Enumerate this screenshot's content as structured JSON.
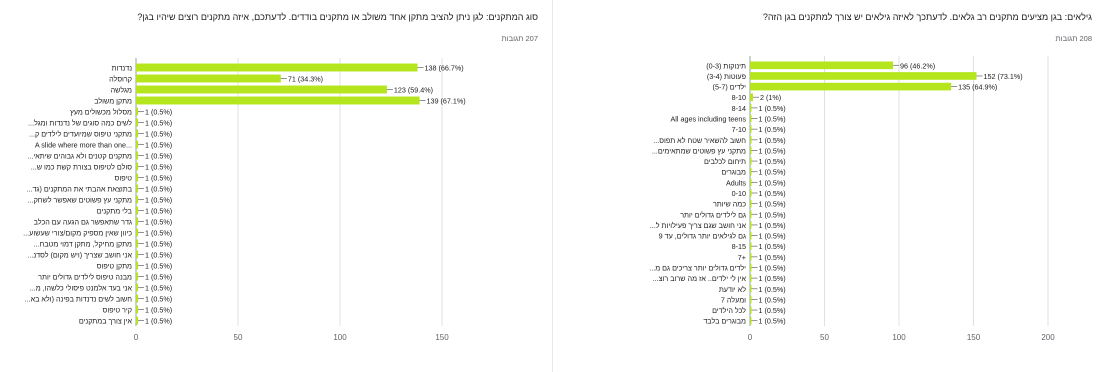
{
  "charts": [
    {
      "question": "סוג המתקנים: לגן ניתן להציב מתקן אחד משולב או מתקנים בודדים. לדעתכם, איזה מתקנים רוצים שיהיו בגן?",
      "responses": "207 תגובות"
    },
    {
      "question": "גילאים: בגן מציעים מתקנים רב גלאים. לדעתכך לאיזה גילאים יש צורך למתקנים בגן הזה?",
      "responses": "208 תגובות"
    }
  ],
  "colors": {
    "bar": "#b5e61d",
    "axis": "#9aa0a6",
    "grid": "#e0e0e0",
    "text": "#202124"
  },
  "chart_data": [
    {
      "type": "bar",
      "orientation": "horizontal",
      "title": "סוג המתקנים: לגן ניתן להציב מתקן אחד משולב או מתקנים בודדים. לדעתכם, איזה מתקנים רוצים שיהיו בגן?",
      "xlim": [
        0,
        150
      ],
      "xticks": [
        0,
        50,
        100,
        150
      ],
      "grid": true,
      "categories": [
        "נדנדות",
        "קרוסלה",
        "מגלשה",
        "מתקן משולב",
        "מסלול מכשולים מעץ",
        "...לשים כמה סוגים של נדנדות ומגל",
        "...מתקני טיפוס שמיועדים לילדים ק",
        "A slide where more than one...",
        "...מתקנים קטנים ולא גבוהים שיתאי",
        "...סולם לטיפוס בצורת קשת כמו ש",
        "טיפוס",
        "...בתוצאת אהבתי את המתקנים (גד",
        "...מתקני עץ פשוטים שאפשר לשחק",
        "בלי מתקנים",
        "גדר שתאפשר גם הגעה עם הכלב",
        "...כיוון שאין מספיק מקום/צורי שעשוע",
        "...מתקן מחיקל, מתקן דמוי מטבח",
        "...אני חושב שצריך (ויש מקום) לסדנ",
        "מתקן טיפוס",
        "מבנה טיפוס לילדים גדולים יותר",
        "...אני בעד אלמנט פיסולי כלשהו, מ",
        "...חשוב לשים נדנדות בפינה (ולא בא",
        "קיר טיפוס",
        "אין צורך במתקנים"
      ],
      "values": [
        138,
        71,
        123,
        139,
        1,
        1,
        1,
        1,
        1,
        1,
        1,
        1,
        1,
        1,
        1,
        1,
        1,
        1,
        1,
        1,
        1,
        1,
        1,
        1
      ],
      "labels": [
        "138 (66.7%)",
        "71 (34.3%)",
        "123 (59.4%)",
        "139 (67.1%)",
        "1 (0.5%)",
        "1 (0.5%)",
        "1 (0.5%)",
        "1 (0.5%)",
        "1 (0.5%)",
        "1 (0.5%)",
        "1 (0.5%)",
        "1 (0.5%)",
        "1 (0.5%)",
        "1 (0.5%)",
        "1 (0.5%)",
        "1 (0.5%)",
        "1 (0.5%)",
        "1 (0.5%)",
        "1 (0.5%)",
        "1 (0.5%)",
        "1 (0.5%)",
        "1 (0.5%)",
        "1 (0.5%)",
        "1 (0.5%)"
      ]
    },
    {
      "type": "bar",
      "orientation": "horizontal",
      "title": "גילאים: בגן מציעים מתקנים רב גלאים. לדעתכך לאיזה גילאים יש צורך למתקנים בגן הזה?",
      "xlim": [
        0,
        200
      ],
      "xticks": [
        0,
        50,
        100,
        150,
        200
      ],
      "grid": true,
      "categories": [
        "תינוקות (0-3)",
        "פעוטות (3-4)",
        "ילדים (5-7)",
        "8-10",
        "8-14",
        "All ages including teens",
        "7-10",
        "...חשוב להשאיר שטח לא תפוס",
        "...מתקני עץ פשוטים שמתאימים",
        "תיחום לכלבים",
        "מבוגרים",
        "Adults",
        "0-10",
        "כמה שיותר",
        "גם לילדים גדולים יותר",
        "...אני חושב שגם צריך פעילויות ל",
        "גם לגילאים יותר גדולים, עד 9",
        "8-15",
        "7+",
        "...ילדים גדולים יותר צריכים גם מ",
        "...אין לי ילדים.. אז מה שרוב רוצ",
        "לא יודעת",
        "ומעלה 7",
        "לכל הילדים",
        "מבוגרים בלבד"
      ],
      "values": [
        96,
        152,
        135,
        2,
        1,
        1,
        1,
        1,
        1,
        1,
        1,
        1,
        1,
        1,
        1,
        1,
        1,
        1,
        1,
        1,
        1,
        1,
        1,
        1,
        1
      ],
      "labels": [
        "96 (46.2%)",
        "152 (73.1%)",
        "135 (64.9%)",
        "2 (1%)",
        "1 (0.5%)",
        "1 (0.5%)",
        "1 (0.5%)",
        "1 (0.5%)",
        "1 (0.5%)",
        "1 (0.5%)",
        "1 (0.5%)",
        "1 (0.5%)",
        "1 (0.5%)",
        "1 (0.5%)",
        "1 (0.5%)",
        "1 (0.5%)",
        "1 (0.5%)",
        "1 (0.5%)",
        "1 (0.5%)",
        "1 (0.5%)",
        "1 (0.5%)",
        "1 (0.5%)",
        "1 (0.5%)",
        "1 (0.5%)",
        "1 (0.5%)"
      ]
    }
  ]
}
